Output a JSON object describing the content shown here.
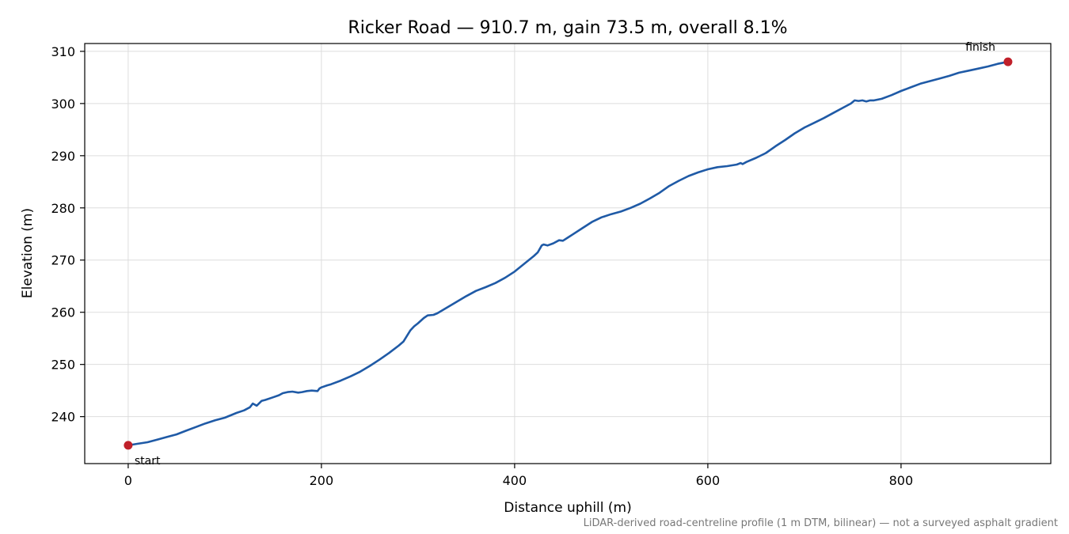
{
  "chart_data": {
    "type": "line",
    "title": "Ricker Road — 910.7 m, gain 73.5 m, overall 8.1%",
    "xlabel": "Distance uphill (m)",
    "ylabel": "Elevation (m)",
    "footnote": "LiDAR-derived road-centreline profile (1 m DTM, bilinear) — not a surveyed asphalt gradient",
    "xlim": [
      -45,
      955
    ],
    "ylim": [
      231,
      311.5
    ],
    "x_ticks": [
      0,
      200,
      400,
      600,
      800
    ],
    "y_ticks": [
      240,
      250,
      260,
      270,
      280,
      290,
      300,
      310
    ],
    "grid": true,
    "line_color": "#1f5aa6",
    "marker_color": "#c0202a",
    "series": [
      {
        "x": [
          0,
          10,
          20,
          30,
          40,
          50,
          60,
          70,
          80,
          90,
          100,
          108,
          112,
          120,
          126,
          129,
          133,
          138,
          142,
          150,
          156,
          160,
          165,
          170,
          176,
          180,
          185,
          190,
          196,
          198,
          200,
          206,
          210,
          220,
          230,
          240,
          250,
          260,
          270,
          280,
          285,
          292,
          296,
          300,
          306,
          310,
          316,
          320,
          330,
          340,
          350,
          360,
          370,
          380,
          390,
          400,
          410,
          420,
          424,
          428,
          430,
          434,
          440,
          446,
          450,
          455,
          460,
          470,
          480,
          490,
          500,
          510,
          520,
          530,
          540,
          550,
          560,
          570,
          580,
          590,
          600,
          610,
          620,
          630,
          634,
          636,
          640,
          650,
          660,
          670,
          680,
          690,
          700,
          710,
          720,
          730,
          740,
          748,
          752,
          756,
          760,
          764,
          768,
          772,
          780,
          790,
          800,
          810,
          820,
          830,
          840,
          850,
          860,
          870,
          880,
          890,
          900,
          910.7
        ],
        "y": [
          234.5,
          234.8,
          235.1,
          235.6,
          236.1,
          236.6,
          237.3,
          238.0,
          238.7,
          239.3,
          239.8,
          240.4,
          240.7,
          241.2,
          241.8,
          242.5,
          242.1,
          243.0,
          243.2,
          243.7,
          244.1,
          244.5,
          244.7,
          244.8,
          244.6,
          244.7,
          244.9,
          245.0,
          244.9,
          245.4,
          245.6,
          246.0,
          246.2,
          246.9,
          247.7,
          248.6,
          249.7,
          250.9,
          252.2,
          253.6,
          254.4,
          256.5,
          257.3,
          257.9,
          258.9,
          259.4,
          259.5,
          259.8,
          260.9,
          262.0,
          263.1,
          264.1,
          264.8,
          265.6,
          266.6,
          267.8,
          269.3,
          270.8,
          271.5,
          272.8,
          273.0,
          272.8,
          273.2,
          273.8,
          273.7,
          274.3,
          274.9,
          276.1,
          277.3,
          278.2,
          278.8,
          279.3,
          280.0,
          280.8,
          281.8,
          282.9,
          284.2,
          285.2,
          286.1,
          286.8,
          287.4,
          287.8,
          288.0,
          288.3,
          288.6,
          288.4,
          288.8,
          289.6,
          290.5,
          291.8,
          293.0,
          294.3,
          295.4,
          296.3,
          297.2,
          298.2,
          299.2,
          300.0,
          300.6,
          300.5,
          300.6,
          300.4,
          300.6,
          300.6,
          300.9,
          301.6,
          302.4,
          303.1,
          303.8,
          304.3,
          304.8,
          305.3,
          305.9,
          306.3,
          306.7,
          307.1,
          307.6,
          308.0
        ]
      }
    ],
    "annotations": [
      {
        "text": "start",
        "x": 0,
        "y": 234.5
      },
      {
        "text": "finish",
        "x": 910.7,
        "y": 308.0
      }
    ]
  }
}
